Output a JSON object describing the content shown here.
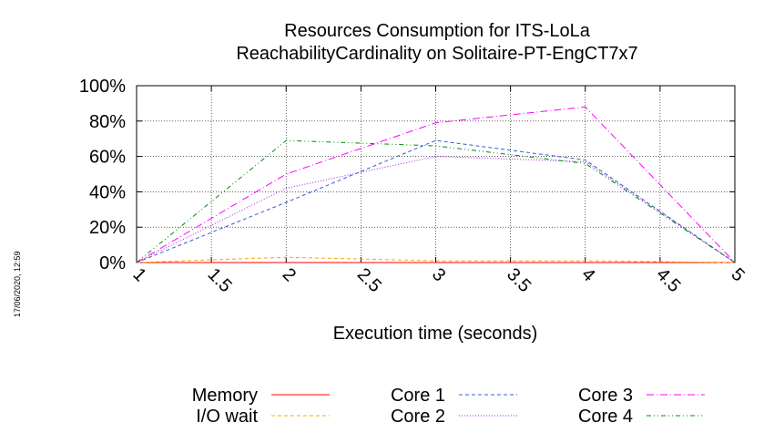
{
  "side_timestamp": "17/06/2020, 12:59",
  "chart_data": {
    "type": "line",
    "title": "Resources Consumption for ITS-LoLa",
    "subtitle": "ReachabilityCardinality on Solitaire-PT-EngCT7x7",
    "xlabel": "Execution time (seconds)",
    "ylabel": "",
    "xlim": [
      1,
      5
    ],
    "ylim": [
      0,
      100
    ],
    "x_ticks": [
      "1",
      "1.5",
      "2",
      "2.5",
      "3",
      "3.5",
      "4",
      "4.5",
      "5"
    ],
    "y_ticks": [
      "0%",
      "20%",
      "40%",
      "60%",
      "80%",
      "100%"
    ],
    "grid": true,
    "legend_position": "bottom",
    "x": [
      1,
      2,
      3,
      4,
      5
    ],
    "series": [
      {
        "name": "Memory",
        "color": "#ff0000",
        "dash": "solid",
        "values": [
          0,
          0,
          0,
          0,
          0
        ]
      },
      {
        "name": "I/O wait",
        "color": "#ffa500",
        "dash": "dashed",
        "values": [
          0,
          3,
          1,
          1,
          0
        ]
      },
      {
        "name": "Core 1",
        "color": "#3a5fcd",
        "dash": "dashed",
        "values": [
          0,
          34,
          69,
          58,
          0
        ]
      },
      {
        "name": "Core 2",
        "color": "#a020f0",
        "dash": "dotted",
        "values": [
          0,
          42,
          60,
          57,
          0
        ]
      },
      {
        "name": "Core 3",
        "color": "#ff00ff",
        "dash": "dashdot",
        "values": [
          0,
          50,
          79,
          88,
          0
        ]
      },
      {
        "name": "Core 4",
        "color": "#008b00",
        "dash": "dashdotdot",
        "values": [
          0,
          69,
          66,
          56,
          0
        ]
      }
    ]
  }
}
